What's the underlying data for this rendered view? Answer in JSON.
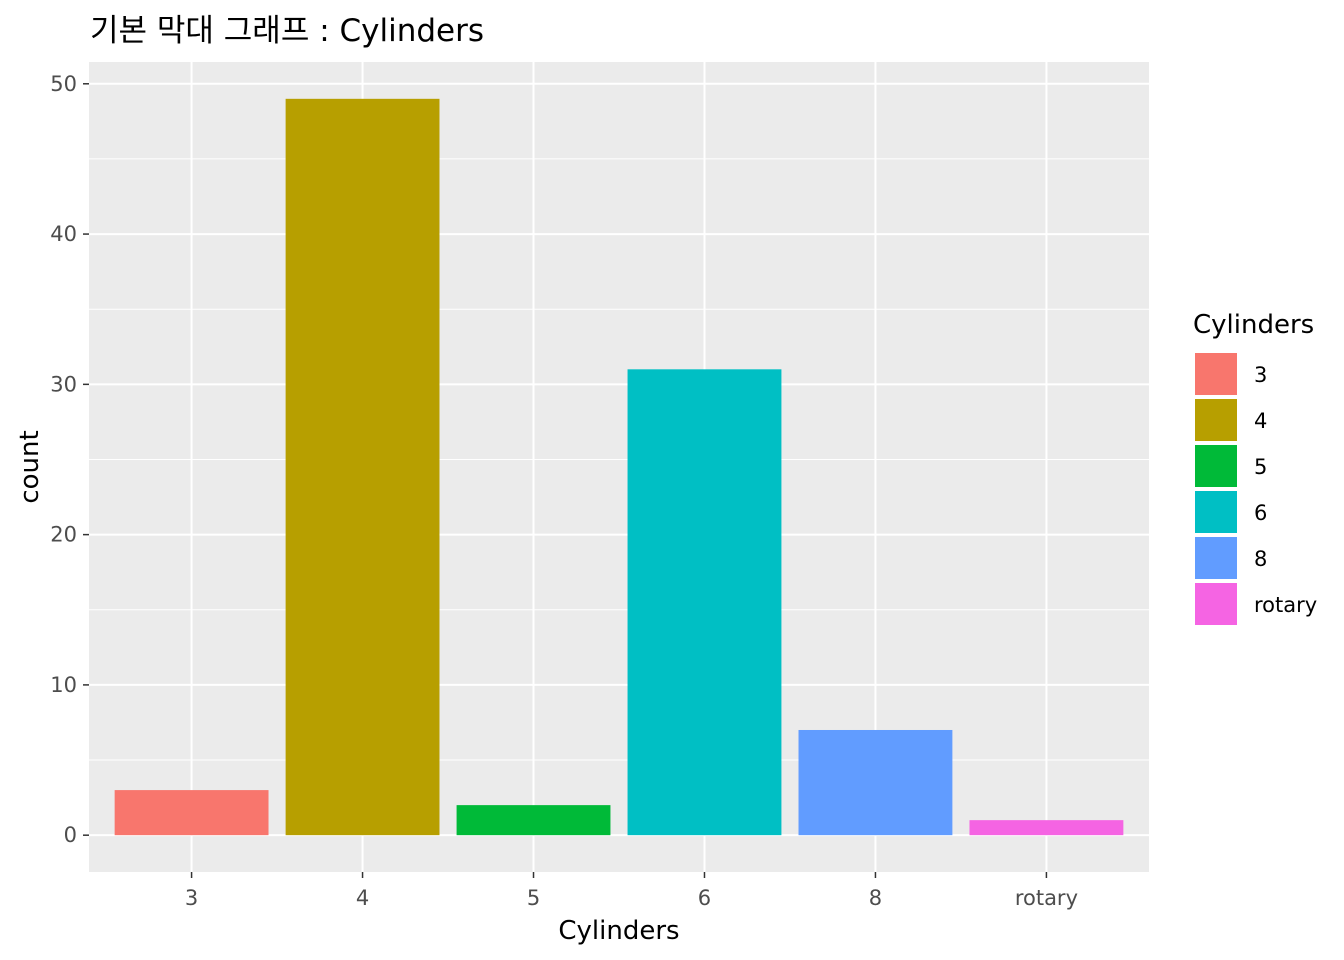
{
  "chart_data": {
    "type": "bar",
    "title": "기본 막대 그래프 : Cylinders",
    "xlabel": "Cylinders",
    "ylabel": "count",
    "categories": [
      "3",
      "4",
      "5",
      "6",
      "8",
      "rotary"
    ],
    "values": [
      3,
      49,
      2,
      31,
      7,
      1
    ],
    "colors": [
      "#F8766D",
      "#B79F00",
      "#00BA38",
      "#00BFC4",
      "#619CFF",
      "#F564E3"
    ],
    "y_ticks": [
      0,
      10,
      20,
      30,
      40,
      50
    ],
    "ylim": [
      -2.45,
      51.45
    ],
    "grid": true,
    "panel_background": "#EBEBEB",
    "legend": {
      "title": "Cylinders",
      "position": "right",
      "labels": [
        "3",
        "4",
        "5",
        "6",
        "8",
        "rotary"
      ]
    }
  }
}
